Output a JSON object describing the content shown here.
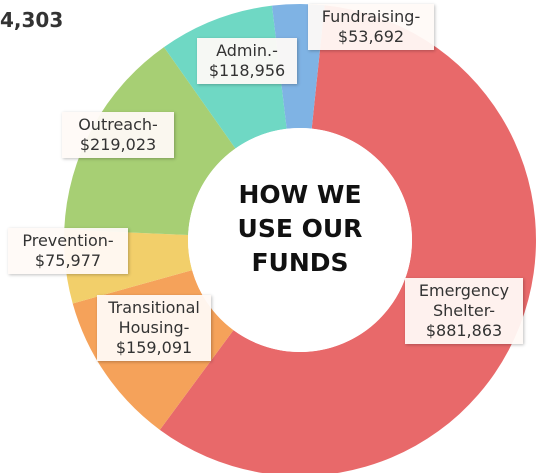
{
  "chart_data": {
    "type": "pie",
    "header_text": "4,303",
    "title": "HOW WE USE OUR FUNDS",
    "categories": [
      "Emergency Shelter-",
      "Transitional Housing-",
      "Prevention-",
      "Outreach-",
      "Admin.-",
      "Fundraising-"
    ],
    "values": [
      881863,
      159091,
      75977,
      219023,
      118956,
      53692
    ],
    "value_labels": [
      "$881,863",
      "$159,091",
      "$75,977",
      "$219,023",
      "$118,956",
      "$53,692"
    ],
    "colors": [
      "#e8696a",
      "#f5a25a",
      "#f2cf6a",
      "#a7cf74",
      "#6fd8c4",
      "#7fb3e4"
    ],
    "donut": true
  }
}
